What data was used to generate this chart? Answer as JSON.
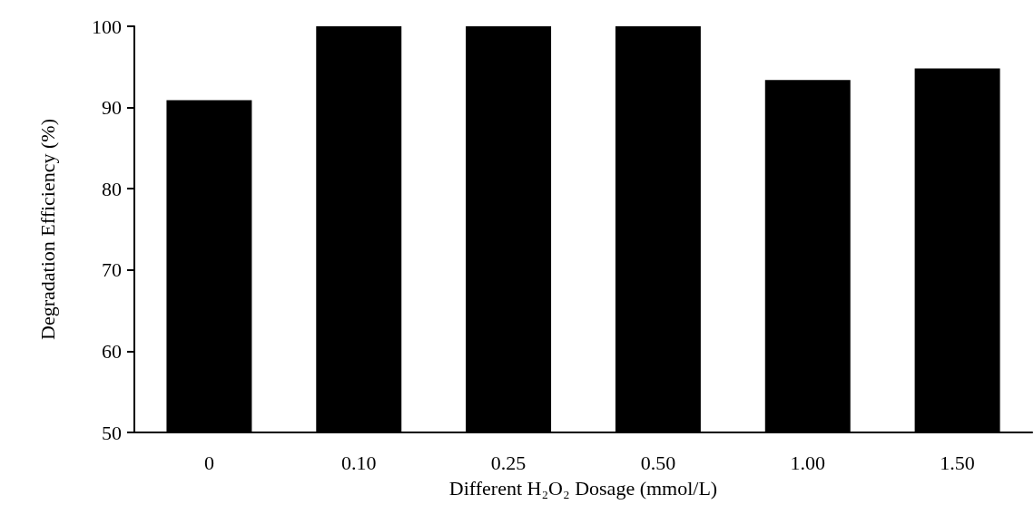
{
  "chart_data": {
    "type": "bar",
    "xlabel": "Different H₂O₂ Dosage (mmol/L)",
    "ylabel": "Degradation Efficiency (%)",
    "categories": [
      "0",
      "0.10",
      "0.25",
      "0.50",
      "1.00",
      "1.50"
    ],
    "values": [
      90.9,
      100,
      100,
      100,
      93.4,
      94.8
    ],
    "color": "#000000",
    "ylim": [
      50,
      100
    ],
    "yticks": [
      50,
      60,
      70,
      80,
      90,
      100
    ],
    "grid": false
  }
}
